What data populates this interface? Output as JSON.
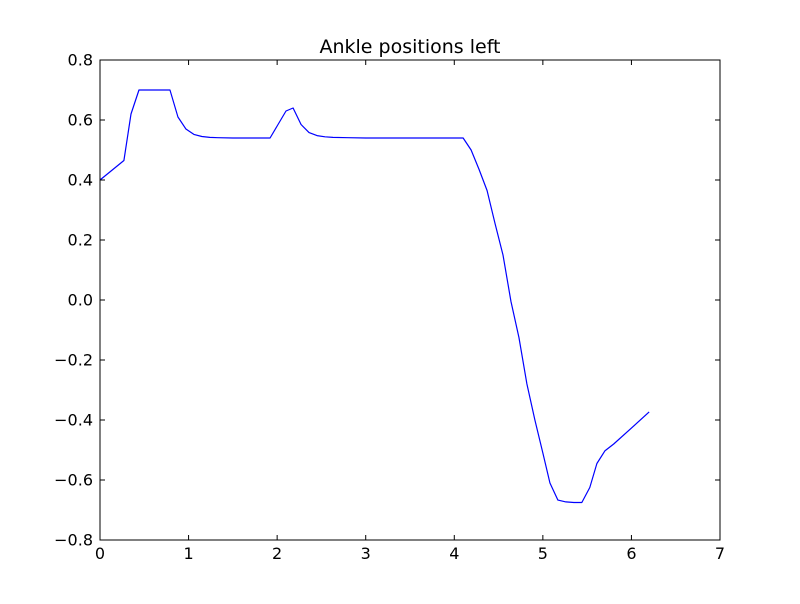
{
  "chart_data": {
    "type": "line",
    "title": "Ankle positions left",
    "xlabel": "",
    "ylabel": "",
    "xlim": [
      0,
      7
    ],
    "ylim": [
      -0.8,
      0.8
    ],
    "grid": false,
    "legend": "none",
    "x_ticks": [
      {
        "value": 0,
        "label": "0"
      },
      {
        "value": 1,
        "label": "1"
      },
      {
        "value": 2,
        "label": "2"
      },
      {
        "value": 3,
        "label": "3"
      },
      {
        "value": 4,
        "label": "4"
      },
      {
        "value": 5,
        "label": "5"
      },
      {
        "value": 6,
        "label": "6"
      },
      {
        "value": 7,
        "label": "7"
      }
    ],
    "y_ticks": [
      {
        "value": -0.8,
        "label": "−0.8"
      },
      {
        "value": -0.6,
        "label": "−0.6"
      },
      {
        "value": -0.4,
        "label": "−0.4"
      },
      {
        "value": -0.2,
        "label": "−0.2"
      },
      {
        "value": 0.0,
        "label": "0.0"
      },
      {
        "value": 0.2,
        "label": "0.2"
      },
      {
        "value": 0.4,
        "label": "0.4"
      },
      {
        "value": 0.6,
        "label": "0.6"
      },
      {
        "value": 0.8,
        "label": "0.8"
      }
    ],
    "series": [
      {
        "color": "#0000ff",
        "x": [
          0.0,
          0.27,
          0.35,
          0.44,
          0.53,
          0.62,
          0.7,
          0.79,
          0.88,
          0.97,
          1.06,
          1.15,
          1.24,
          1.33,
          1.5,
          1.7,
          1.92,
          2.0,
          2.1,
          2.18,
          2.27,
          2.36,
          2.45,
          2.54,
          2.63,
          2.8,
          3.0,
          3.5,
          4.0,
          4.1,
          4.19,
          4.28,
          4.37,
          4.46,
          4.55,
          4.64,
          4.73,
          4.82,
          4.91,
          5.0,
          5.08,
          5.17,
          5.26,
          5.35,
          5.44,
          5.53,
          5.61,
          5.7,
          5.8,
          6.0,
          6.2
        ],
        "y": [
          0.4,
          0.465,
          0.62,
          0.7,
          0.7,
          0.7,
          0.7,
          0.7,
          0.61,
          0.57,
          0.552,
          0.545,
          0.542,
          0.541,
          0.54,
          0.54,
          0.54,
          0.58,
          0.63,
          0.64,
          0.585,
          0.558,
          0.548,
          0.544,
          0.542,
          0.541,
          0.54,
          0.54,
          0.54,
          0.54,
          0.5,
          0.435,
          0.365,
          0.255,
          0.15,
          -0.005,
          -0.125,
          -0.28,
          -0.4,
          -0.51,
          -0.61,
          -0.667,
          -0.673,
          -0.675,
          -0.675,
          -0.625,
          -0.545,
          -0.503,
          -0.48,
          -0.427,
          -0.373
        ]
      }
    ]
  }
}
